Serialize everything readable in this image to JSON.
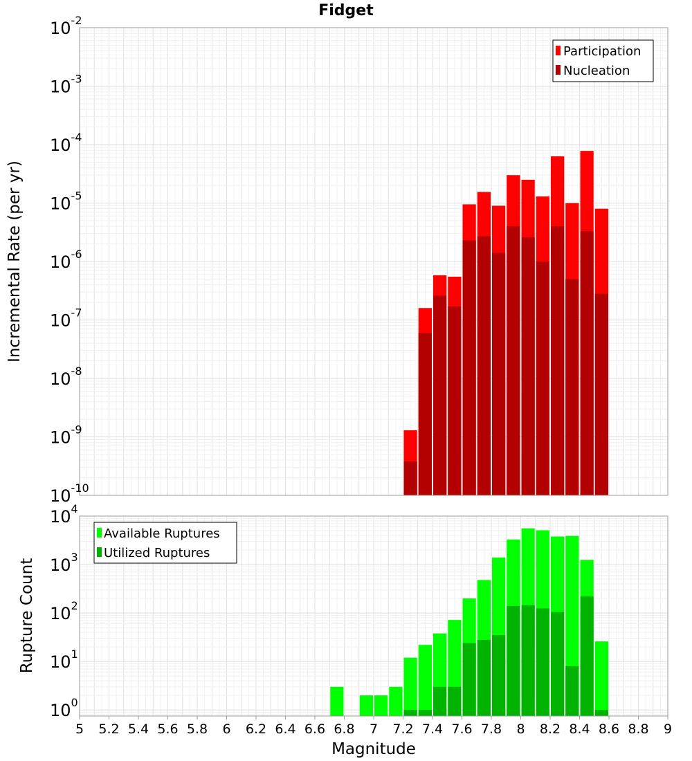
{
  "chart_data": [
    {
      "type": "bar",
      "title": "Fidget",
      "ylabel": "Incremental Rate (per yr)",
      "yscale": "log",
      "ylim": [
        1e-10,
        0.01
      ],
      "xlim": [
        5,
        9
      ],
      "bin_width": 0.1,
      "grid": true,
      "legend_position": "top-right",
      "x": [
        7.25,
        7.35,
        7.45,
        7.55,
        7.65,
        7.75,
        7.85,
        7.95,
        8.05,
        8.15,
        8.25,
        8.35,
        8.45,
        8.55
      ],
      "series": [
        {
          "name": "Participation",
          "color": "#ff0000",
          "values": [
            1.3e-09,
            1.6e-07,
            5.8e-07,
            5.5e-07,
            9.5e-06,
            1.55e-05,
            9e-06,
            3e-05,
            2.5e-05,
            1.3e-05,
            6.3e-05,
            1e-05,
            7.8e-05,
            8e-06
          ]
        },
        {
          "name": "Nucleation",
          "color": "#b30000",
          "values": [
            3.8e-10,
            6e-08,
            2.6e-07,
            1.7e-07,
            2.3e-06,
            2.7e-06,
            1.4e-06,
            4e-06,
            2.6e-06,
            1e-06,
            4e-06,
            5e-07,
            3.3e-06,
            2.8e-07
          ]
        }
      ]
    },
    {
      "type": "bar",
      "xlabel": "Magnitude",
      "ylabel": "Rupture Count",
      "yscale": "log",
      "ylim": [
        0.75,
        10000
      ],
      "xlim": [
        5,
        9
      ],
      "bin_width": 0.1,
      "grid": true,
      "legend_position": "top-left",
      "x": [
        6.75,
        6.95,
        7.05,
        7.15,
        7.25,
        7.35,
        7.45,
        7.55,
        7.65,
        7.75,
        7.85,
        7.95,
        8.05,
        8.15,
        8.25,
        8.35,
        8.45,
        8.55
      ],
      "series": [
        {
          "name": "Available Ruptures",
          "color": "#00ff00",
          "values": [
            3,
            2,
            2,
            3,
            12,
            22,
            38,
            72,
            200,
            480,
            1400,
            3300,
            5600,
            5100,
            3800,
            3900,
            1250,
            26
          ]
        },
        {
          "name": "Utilized Ruptures",
          "color": "#00b300",
          "values": [
            null,
            null,
            null,
            null,
            1,
            1,
            3,
            3,
            24,
            28,
            35,
            140,
            145,
            125,
            105,
            8,
            220,
            1
          ]
        }
      ]
    }
  ],
  "x_ticks": [
    "5",
    "5.2",
    "5.4",
    "5.6",
    "5.8",
    "6",
    "6.2",
    "6.4",
    "6.6",
    "6.8",
    "7",
    "7.2",
    "7.4",
    "7.6",
    "7.8",
    "8",
    "8.2",
    "8.4",
    "8.6",
    "8.8",
    "9"
  ],
  "top_y_ticks": [
    {
      "base": "10",
      "exp": "-2"
    },
    {
      "base": "10",
      "exp": "-3"
    },
    {
      "base": "10",
      "exp": "-4"
    },
    {
      "base": "10",
      "exp": "-5"
    },
    {
      "base": "10",
      "exp": "-6"
    },
    {
      "base": "10",
      "exp": "-7"
    },
    {
      "base": "10",
      "exp": "-8"
    },
    {
      "base": "10",
      "exp": "-9"
    },
    {
      "base": "10",
      "exp": "-10"
    }
  ],
  "bottom_y_ticks": [
    {
      "base": "10",
      "exp": "4"
    },
    {
      "base": "10",
      "exp": "3"
    },
    {
      "base": "10",
      "exp": "2"
    },
    {
      "base": "10",
      "exp": "1"
    },
    {
      "base": "10",
      "exp": "0"
    }
  ]
}
